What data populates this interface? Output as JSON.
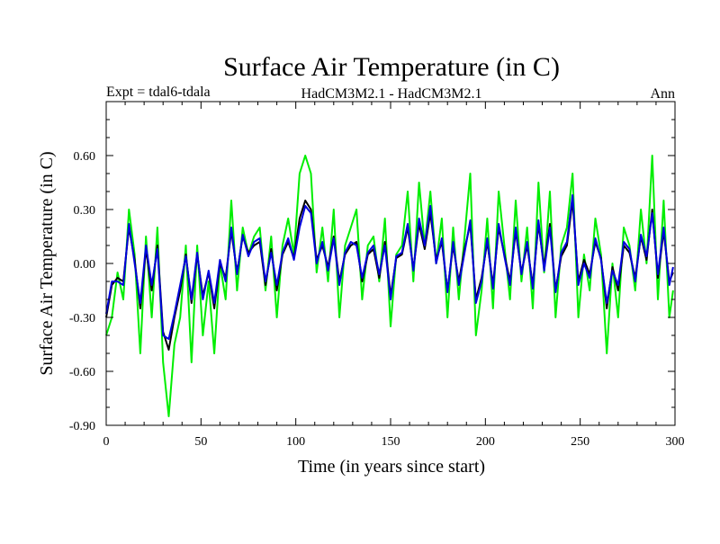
{
  "chart_data": {
    "type": "line",
    "title": "Surface Air Temperature (in C)",
    "subtitle_left": "Expt = tdal6-tdala",
    "subtitle_center": "HadCM3M2.1 - HadCM3M2.1",
    "subtitle_right": "Ann",
    "xlabel": "Time (in years since start)",
    "ylabel": "Surface Air Temperature (in C)",
    "xlim": [
      0,
      300
    ],
    "ylim": [
      -0.9,
      0.9
    ],
    "xticks": [
      0,
      50,
      100,
      150,
      200,
      250,
      300
    ],
    "xtick_labels": [
      "0",
      "50",
      "100",
      "150",
      "200",
      "250",
      "300"
    ],
    "yticks": [
      -0.9,
      -0.6,
      -0.3,
      0.0,
      0.3,
      0.6
    ],
    "ytick_labels": [
      "-0.90",
      "-0.60",
      "-0.30",
      "0.00",
      "0.30",
      "0.60"
    ],
    "legend": "none",
    "grid": false,
    "series": [
      {
        "name": "annual (green)",
        "color": "#00ee00",
        "x": [
          0,
          3,
          6,
          9,
          12,
          15,
          18,
          21,
          24,
          27,
          30,
          33,
          36,
          39,
          42,
          45,
          48,
          51,
          54,
          57,
          60,
          63,
          66,
          69,
          72,
          75,
          78,
          81,
          84,
          87,
          90,
          93,
          96,
          99,
          102,
          105,
          108,
          111,
          114,
          117,
          120,
          123,
          126,
          129,
          132,
          135,
          138,
          141,
          144,
          147,
          150,
          153,
          156,
          159,
          162,
          165,
          168,
          171,
          174,
          177,
          180,
          183,
          186,
          189,
          192,
          195,
          198,
          201,
          204,
          207,
          210,
          213,
          216,
          219,
          222,
          225,
          228,
          231,
          234,
          237,
          240,
          243,
          246,
          249,
          252,
          255,
          258,
          261,
          264,
          267,
          270,
          273,
          276,
          279,
          282,
          285,
          288,
          291,
          294,
          297,
          299
        ],
        "y": [
          -0.4,
          -0.3,
          -0.05,
          -0.2,
          0.3,
          0.05,
          -0.5,
          0.15,
          -0.3,
          0.2,
          -0.55,
          -0.85,
          -0.45,
          -0.3,
          0.1,
          -0.55,
          0.1,
          -0.4,
          -0.1,
          -0.5,
          0.0,
          -0.2,
          0.35,
          -0.15,
          0.2,
          0.05,
          0.15,
          0.2,
          -0.15,
          0.15,
          -0.3,
          0.1,
          0.25,
          0.05,
          0.5,
          0.6,
          0.5,
          -0.05,
          0.2,
          -0.1,
          0.3,
          -0.3,
          0.1,
          0.2,
          0.3,
          -0.2,
          0.1,
          0.15,
          -0.1,
          0.25,
          -0.35,
          0.05,
          0.1,
          0.4,
          -0.1,
          0.45,
          0.1,
          0.4,
          0.0,
          0.25,
          -0.3,
          0.2,
          -0.2,
          0.15,
          0.5,
          -0.4,
          -0.15,
          0.25,
          -0.25,
          0.4,
          0.1,
          -0.2,
          0.35,
          -0.1,
          0.2,
          -0.25,
          0.45,
          -0.05,
          0.4,
          -0.3,
          0.1,
          0.2,
          0.5,
          -0.3,
          0.05,
          -0.15,
          0.25,
          0.05,
          -0.5,
          0.0,
          -0.3,
          0.2,
          0.1,
          -0.15,
          0.3,
          0.0,
          0.6,
          -0.2,
          0.35,
          -0.3,
          -0.15
        ]
      },
      {
        "name": "smoothed (black)",
        "color": "#000000",
        "x": [
          0,
          3,
          6,
          9,
          12,
          15,
          18,
          21,
          24,
          27,
          30,
          33,
          36,
          39,
          42,
          45,
          48,
          51,
          54,
          57,
          60,
          63,
          66,
          69,
          72,
          75,
          78,
          81,
          84,
          87,
          90,
          93,
          96,
          99,
          102,
          105,
          108,
          111,
          114,
          117,
          120,
          123,
          126,
          129,
          132,
          135,
          138,
          141,
          144,
          147,
          150,
          153,
          156,
          159,
          162,
          165,
          168,
          171,
          174,
          177,
          180,
          183,
          186,
          189,
          192,
          195,
          198,
          201,
          204,
          207,
          210,
          213,
          216,
          219,
          222,
          225,
          228,
          231,
          234,
          237,
          240,
          243,
          246,
          249,
          252,
          255,
          258,
          261,
          264,
          267,
          270,
          273,
          276,
          279,
          282,
          285,
          288,
          291,
          294,
          297,
          299
        ],
        "y": [
          -0.3,
          -0.12,
          -0.08,
          -0.1,
          0.2,
          0.02,
          -0.25,
          0.08,
          -0.15,
          0.1,
          -0.38,
          -0.48,
          -0.3,
          -0.15,
          0.05,
          -0.22,
          0.05,
          -0.18,
          -0.05,
          -0.25,
          0.0,
          -0.08,
          0.18,
          -0.05,
          0.15,
          0.06,
          0.1,
          0.12,
          -0.12,
          0.08,
          -0.15,
          0.05,
          0.12,
          0.03,
          0.25,
          0.35,
          0.3,
          0.02,
          0.1,
          -0.02,
          0.15,
          -0.1,
          0.05,
          0.1,
          0.12,
          -0.1,
          0.05,
          0.08,
          -0.08,
          0.12,
          -0.18,
          0.03,
          0.05,
          0.2,
          -0.03,
          0.22,
          0.08,
          0.28,
          0.02,
          0.12,
          -0.15,
          0.1,
          -0.1,
          0.08,
          0.22,
          -0.2,
          -0.08,
          0.12,
          -0.12,
          0.2,
          0.05,
          -0.1,
          0.18,
          -0.05,
          0.1,
          -0.12,
          0.22,
          -0.02,
          0.22,
          -0.15,
          0.04,
          0.1,
          0.35,
          -0.1,
          0.02,
          -0.06,
          0.12,
          0.03,
          -0.25,
          -0.02,
          -0.15,
          0.1,
          0.06,
          -0.08,
          0.15,
          0.02,
          0.3,
          -0.08,
          0.18,
          -0.1,
          -0.05
        ]
      },
      {
        "name": "smoothed (blue)",
        "color": "#0000dd",
        "x": [
          0,
          3,
          6,
          9,
          12,
          15,
          18,
          21,
          24,
          27,
          30,
          33,
          36,
          39,
          42,
          45,
          48,
          51,
          54,
          57,
          60,
          63,
          66,
          69,
          72,
          75,
          78,
          81,
          84,
          87,
          90,
          93,
          96,
          99,
          102,
          105,
          108,
          111,
          114,
          117,
          120,
          123,
          126,
          129,
          132,
          135,
          138,
          141,
          144,
          147,
          150,
          153,
          156,
          159,
          162,
          165,
          168,
          171,
          174,
          177,
          180,
          183,
          186,
          189,
          192,
          195,
          198,
          201,
          204,
          207,
          210,
          213,
          216,
          219,
          222,
          225,
          228,
          231,
          234,
          237,
          240,
          243,
          246,
          249,
          252,
          255,
          258,
          261,
          264,
          267,
          270,
          273,
          276,
          279,
          282,
          285,
          288,
          291,
          294,
          297,
          299
        ],
        "y": [
          -0.28,
          -0.1,
          -0.1,
          -0.12,
          0.22,
          0.0,
          -0.22,
          0.1,
          -0.12,
          0.08,
          -0.4,
          -0.42,
          -0.28,
          -0.12,
          0.04,
          -0.2,
          0.06,
          -0.2,
          -0.04,
          -0.22,
          0.02,
          -0.1,
          0.2,
          -0.06,
          0.16,
          0.04,
          0.12,
          0.14,
          -0.1,
          0.06,
          -0.12,
          0.06,
          0.14,
          0.02,
          0.2,
          0.32,
          0.28,
          0.0,
          0.12,
          -0.04,
          0.14,
          -0.12,
          0.06,
          0.12,
          0.1,
          -0.08,
          0.06,
          0.1,
          -0.06,
          0.1,
          -0.2,
          0.04,
          0.06,
          0.22,
          -0.04,
          0.25,
          0.1,
          0.32,
          0.0,
          0.14,
          -0.16,
          0.12,
          -0.12,
          0.06,
          0.24,
          -0.22,
          -0.1,
          0.14,
          -0.14,
          0.22,
          0.04,
          -0.12,
          0.2,
          -0.06,
          0.12,
          -0.14,
          0.24,
          -0.04,
          0.2,
          -0.16,
          0.06,
          0.12,
          0.38,
          -0.12,
          0.0,
          -0.08,
          0.14,
          0.02,
          -0.22,
          -0.04,
          -0.12,
          0.12,
          0.08,
          -0.1,
          0.16,
          0.04,
          0.28,
          -0.06,
          0.2,
          -0.12,
          -0.02
        ]
      }
    ]
  }
}
